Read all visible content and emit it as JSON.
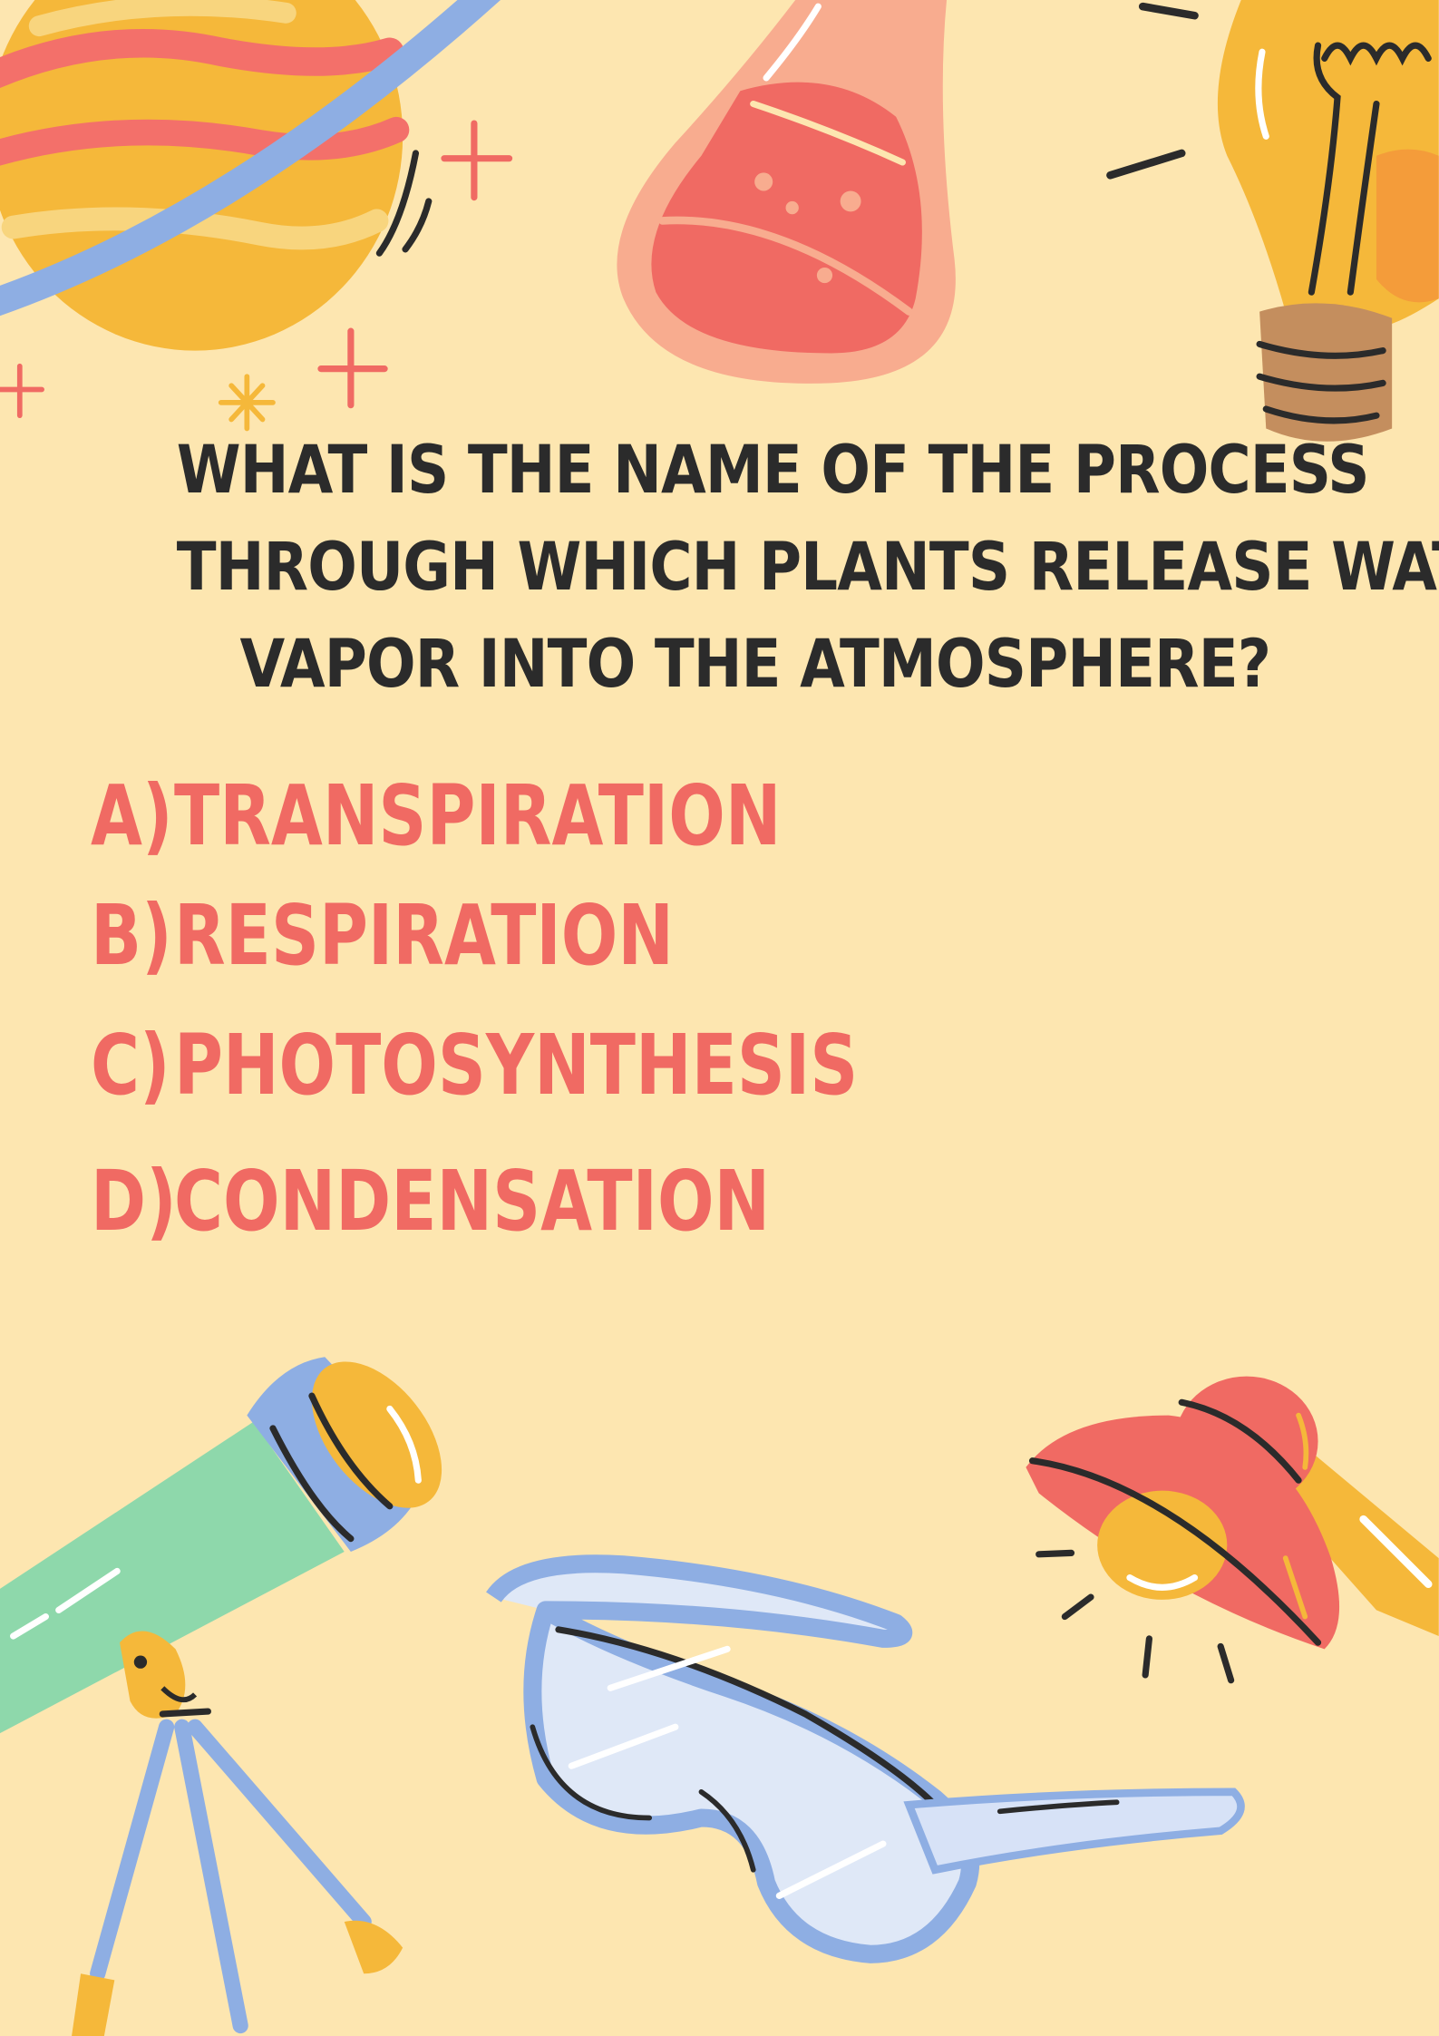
{
  "question": {
    "lines": [
      "WHAT IS THE NAME OF THE PROCESS",
      "THROUGH WHICH PLANTS RELEASE WATER",
      "VAPOR INTO THE ATMOSPHERE?"
    ]
  },
  "options": [
    {
      "letter": "A)",
      "text": "TRANSPIRATION"
    },
    {
      "letter": "B)",
      "text": "RESPIRATION"
    },
    {
      "letter": "C)",
      "text": "PHOTOSYNTHESIS"
    },
    {
      "letter": "D)",
      "text": "CONDENSATION"
    }
  ],
  "colors": {
    "background": "#fde6b0",
    "question_text": "#2b2b2b",
    "option_text": "#f06a63"
  },
  "illustrations": [
    "planet-icon",
    "flask-icon",
    "light-bulb-icon",
    "telescope-icon",
    "safety-goggles-icon",
    "desk-lamp-icon",
    "sparkle-icon"
  ]
}
